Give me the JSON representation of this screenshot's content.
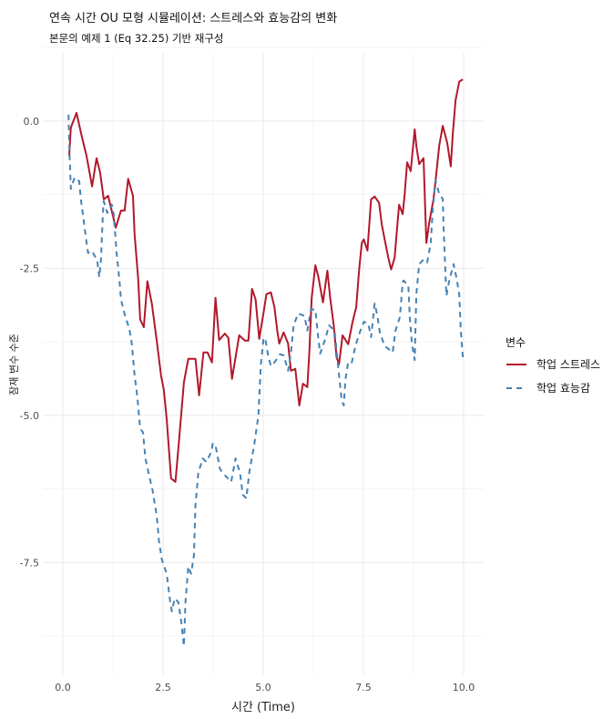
{
  "chart_data": {
    "type": "line",
    "title": "연속 시간 OU 모형 시뮬레이션: 스트레스와 효능감의 변화",
    "subtitle": "본문의 예제 1 (Eq 32.25) 기반 재구성",
    "xlabel": "시간 (Time)",
    "ylabel": "잠재 변수 수준",
    "xlim": [
      -0.5,
      10.5
    ],
    "ylim": [
      -9.4,
      1.16
    ],
    "xticks": [
      0,
      2.5,
      5,
      7.5,
      10
    ],
    "xtick_labels": [
      "0.0",
      "2.5",
      "5.0",
      "7.5",
      "10.0"
    ],
    "yticks": [
      0,
      -2.5,
      -5,
      -7.5
    ],
    "ytick_labels": [
      "0.0",
      "-2.5",
      "-5.0",
      "-7.5"
    ],
    "minor_xticks": [
      1.25,
      3.75,
      6.25,
      8.75
    ],
    "minor_yticks": [
      1.25,
      -1.25,
      -3.75,
      -6.25,
      -8.75
    ],
    "grid": true,
    "legend": {
      "title": "변수",
      "placement": "right"
    },
    "series": [
      {
        "name": "학업 스트레스",
        "color": "#b2182b",
        "dash": "solid",
        "x": [
          0.16,
          0.2,
          0.34,
          0.48,
          0.59,
          0.73,
          0.84,
          0.93,
          1.02,
          1.13,
          1.32,
          1.45,
          1.54,
          1.63,
          1.75,
          1.79,
          1.88,
          1.93,
          2.02,
          2.11,
          2.22,
          2.34,
          2.45,
          2.52,
          2.59,
          2.7,
          2.81,
          2.9,
          3.02,
          3.13,
          3.31,
          3.4,
          3.51,
          3.61,
          3.72,
          3.81,
          3.9,
          4.04,
          4.13,
          4.22,
          4.4,
          4.54,
          4.63,
          4.72,
          4.81,
          4.9,
          5.01,
          5.08,
          5.19,
          5.28,
          5.35,
          5.4,
          5.51,
          5.62,
          5.69,
          5.8,
          5.9,
          5.99,
          6.1,
          6.15,
          6.21,
          6.3,
          6.37,
          6.49,
          6.6,
          6.67,
          6.76,
          6.83,
          6.89,
          6.98,
          7.12,
          7.23,
          7.32,
          7.39,
          7.46,
          7.51,
          7.6,
          7.69,
          7.78,
          7.89,
          7.96,
          8.03,
          8.12,
          8.19,
          8.28,
          8.34,
          8.39,
          8.48,
          8.53,
          8.59,
          8.68,
          8.78,
          8.82,
          8.89,
          9.0,
          9.07,
          9.14,
          9.25,
          9.32,
          9.39,
          9.48,
          9.59,
          9.68,
          9.73,
          9.8,
          9.89,
          9.98
        ],
        "y": [
          -0.59,
          -0.11,
          0.14,
          -0.28,
          -0.59,
          -1.11,
          -0.63,
          -0.87,
          -1.33,
          -1.27,
          -1.81,
          -1.52,
          -1.52,
          -0.98,
          -1.27,
          -1.93,
          -2.68,
          -3.37,
          -3.5,
          -2.72,
          -3.1,
          -3.72,
          -4.32,
          -4.57,
          -5.06,
          -6.07,
          -6.13,
          -5.42,
          -4.44,
          -4.04,
          -4.04,
          -4.66,
          -3.93,
          -3.93,
          -4.1,
          -3.0,
          -3.72,
          -3.61,
          -3.68,
          -4.38,
          -3.64,
          -3.73,
          -3.73,
          -2.85,
          -3.03,
          -3.7,
          -3.25,
          -2.94,
          -2.91,
          -3.16,
          -3.56,
          -3.78,
          -3.59,
          -3.78,
          -4.24,
          -4.21,
          -4.83,
          -4.46,
          -4.52,
          -3.93,
          -3.0,
          -2.45,
          -2.63,
          -3.08,
          -2.54,
          -3.0,
          -3.47,
          -4.01,
          -4.13,
          -3.64,
          -3.79,
          -3.41,
          -3.16,
          -2.54,
          -2.07,
          -2.01,
          -2.2,
          -1.33,
          -1.28,
          -1.39,
          -1.76,
          -2.01,
          -2.32,
          -2.52,
          -2.32,
          -1.81,
          -1.42,
          -1.58,
          -1.24,
          -0.7,
          -0.85,
          -0.14,
          -0.42,
          -0.73,
          -0.63,
          -2.07,
          -1.73,
          -1.32,
          -0.88,
          -0.42,
          -0.08,
          -0.37,
          -0.77,
          -0.22,
          0.36,
          0.67,
          0.71
        ]
      },
      {
        "name": "학업 효능감",
        "color": "#4682b4",
        "dash": "dashed",
        "x": [
          0.14,
          0.16,
          0.2,
          0.29,
          0.41,
          0.45,
          0.52,
          0.59,
          0.63,
          0.73,
          0.86,
          0.91,
          0.95,
          1.0,
          1.02,
          1.11,
          1.22,
          1.27,
          1.34,
          1.41,
          1.45,
          1.54,
          1.66,
          1.72,
          1.79,
          1.86,
          1.93,
          2.0,
          2.06,
          2.15,
          2.24,
          2.34,
          2.4,
          2.47,
          2.59,
          2.68,
          2.72,
          2.79,
          2.88,
          2.95,
          3.02,
          3.06,
          3.13,
          3.2,
          3.27,
          3.31,
          3.38,
          3.49,
          3.58,
          3.7,
          3.74,
          3.81,
          3.92,
          3.99,
          4.2,
          4.31,
          4.42,
          4.49,
          4.58,
          4.65,
          4.78,
          4.88,
          4.94,
          5.01,
          5.06,
          5.12,
          5.19,
          5.28,
          5.42,
          5.51,
          5.62,
          5.69,
          5.76,
          5.87,
          6.03,
          6.1,
          6.19,
          6.3,
          6.37,
          6.42,
          6.55,
          6.64,
          6.78,
          6.87,
          6.96,
          7.01,
          7.05,
          7.12,
          7.21,
          7.3,
          7.41,
          7.51,
          7.62,
          7.69,
          7.78,
          7.85,
          7.91,
          8.03,
          8.23,
          8.3,
          8.41,
          8.48,
          8.5,
          8.62,
          8.66,
          8.71,
          8.78,
          8.82,
          8.89,
          9.0,
          9.09,
          9.18,
          9.23,
          9.3,
          9.39,
          9.48,
          9.5,
          9.55,
          9.57,
          9.64,
          9.75,
          9.82,
          9.89,
          9.93,
          9.98
        ],
        "y": [
          0.11,
          -0.4,
          -1.15,
          -0.96,
          -1.02,
          -1.33,
          -1.69,
          -2.06,
          -2.24,
          -2.21,
          -2.37,
          -2.65,
          -2.37,
          -1.56,
          -1.36,
          -1.56,
          -1.42,
          -1.59,
          -2.24,
          -2.68,
          -3.03,
          -3.28,
          -3.53,
          -3.78,
          -4.32,
          -4.69,
          -5.22,
          -5.29,
          -5.73,
          -6.01,
          -6.28,
          -6.7,
          -7.14,
          -7.45,
          -7.69,
          -8.17,
          -8.33,
          -8.11,
          -8.17,
          -8.48,
          -8.92,
          -8.17,
          -7.57,
          -7.69,
          -7.38,
          -6.53,
          -5.98,
          -5.73,
          -5.79,
          -5.63,
          -5.48,
          -5.51,
          -5.91,
          -5.98,
          -6.13,
          -5.73,
          -5.98,
          -6.35,
          -6.41,
          -5.98,
          -5.48,
          -5.0,
          -4.13,
          -3.68,
          -3.73,
          -3.98,
          -4.16,
          -4.1,
          -3.96,
          -3.98,
          -4.24,
          -3.93,
          -3.47,
          -3.27,
          -3.31,
          -3.56,
          -3.2,
          -3.2,
          -3.67,
          -3.95,
          -3.7,
          -3.47,
          -3.56,
          -4.18,
          -4.75,
          -4.83,
          -4.4,
          -4.09,
          -4.1,
          -3.82,
          -3.59,
          -3.41,
          -3.44,
          -3.67,
          -3.1,
          -3.31,
          -3.59,
          -3.82,
          -3.93,
          -3.56,
          -3.33,
          -2.74,
          -2.71,
          -2.79,
          -3.36,
          -3.78,
          -4.06,
          -2.94,
          -2.43,
          -2.35,
          -2.4,
          -2.07,
          -1.5,
          -1.01,
          -1.24,
          -1.32,
          -1.81,
          -2.63,
          -2.97,
          -2.71,
          -2.43,
          -2.66,
          -2.94,
          -3.56,
          -4.01
        ]
      }
    ]
  }
}
